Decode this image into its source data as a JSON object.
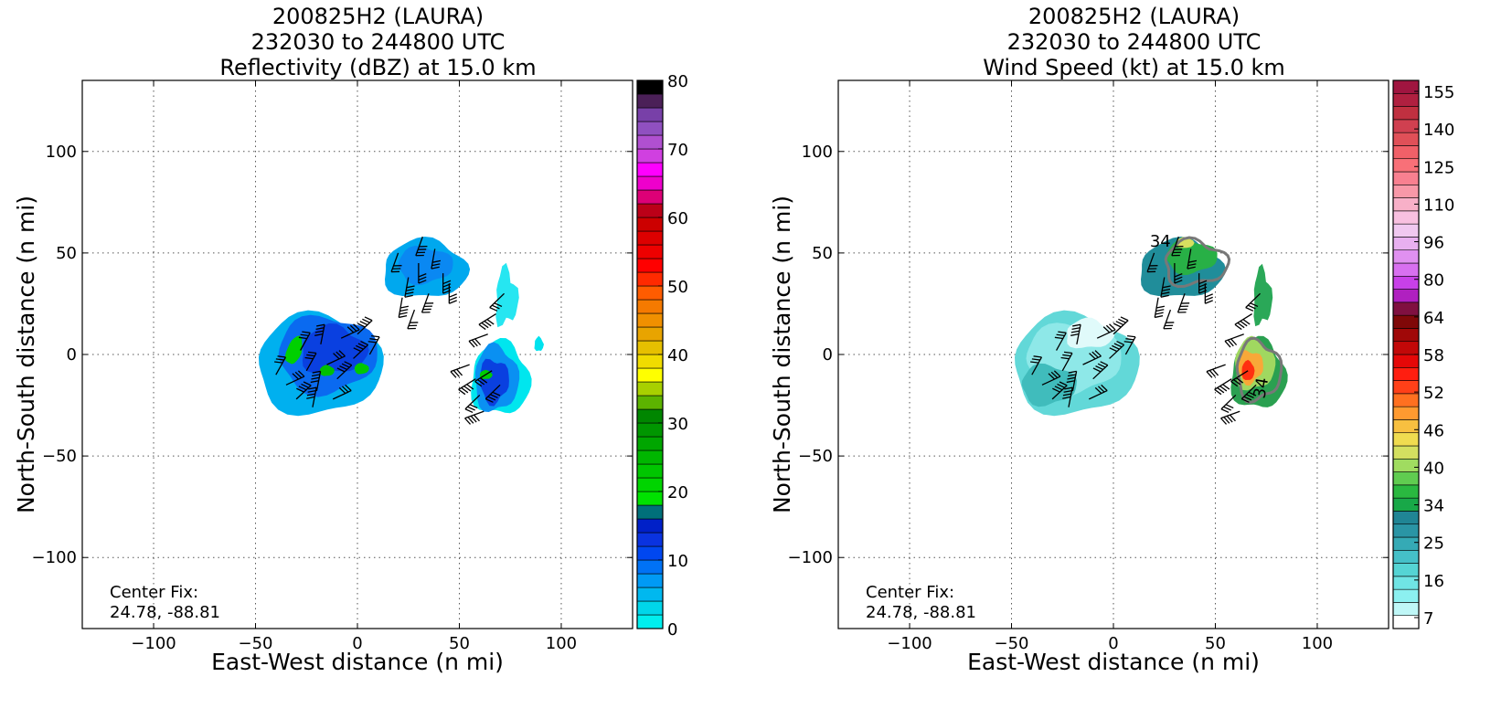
{
  "chart_data": [
    {
      "type": "heatmap",
      "title_lines": [
        "200825H2 (LAURA)",
        "232030 to 244800 UTC",
        "Reflectivity (dBZ) at 15.0 km"
      ],
      "xlabel": "East-West distance (n mi)",
      "ylabel": "North-South distance (n mi)",
      "xlim": [
        -135,
        135
      ],
      "ylim": [
        -135,
        135
      ],
      "xticks": [
        "−100",
        "−50",
        "0",
        "50",
        "100"
      ],
      "yticks": [
        "100",
        "50",
        "0",
        "−50",
        "−100"
      ],
      "grid": true,
      "annotation": [
        "Center Fix:",
        "24.78, -88.81"
      ],
      "colorbar": {
        "vmin": 0,
        "vmax": 80,
        "tick_values": [
          0,
          10,
          20,
          30,
          40,
          50,
          60,
          70,
          80
        ],
        "tick_labels": [
          "0",
          "10",
          "20",
          "30",
          "40",
          "50",
          "60",
          "70",
          "80"
        ],
        "colors": [
          "#00eeee",
          "#00d6ea",
          "#00b8ef",
          "#009af5",
          "#0072f5",
          "#0047f0",
          "#0a33e0",
          "#0020c8",
          "#00707a",
          "#00e200",
          "#00d400",
          "#00c600",
          "#00b600",
          "#00a600",
          "#009600",
          "#008600",
          "#5cb300",
          "#a8d000",
          "#ffff00",
          "#f0dc00",
          "#e6c000",
          "#e8a400",
          "#f09000",
          "#f57a00",
          "#ff5c00",
          "#ff2a00",
          "#ff0000",
          "#ee0000",
          "#dd0000",
          "#cc0000",
          "#bb0018",
          "#dd0077",
          "#ee00cc",
          "#ff00ff",
          "#d040e0",
          "#b050d0",
          "#9050c0",
          "#7840a8",
          "#4b2058",
          "#000000"
        ]
      },
      "wind_barbs": true
    },
    {
      "type": "heatmap",
      "title_lines": [
        "200825H2 (LAURA)",
        "232030 to 244800 UTC",
        "Wind Speed (kt) at 15.0 km"
      ],
      "xlabel": "East-West distance (n mi)",
      "ylabel": "North-South distance (n mi)",
      "xlim": [
        -135,
        135
      ],
      "ylim": [
        -135,
        135
      ],
      "xticks": [
        "−100",
        "−50",
        "0",
        "50",
        "100"
      ],
      "yticks": [
        "100",
        "50",
        "0",
        "−50",
        "−100"
      ],
      "grid": true,
      "annotation": [
        "Center Fix:",
        "24.78, -88.81"
      ],
      "contour_labels": [
        "34",
        "34"
      ],
      "colorbar": {
        "tick_labels": [
          "7",
          "16",
          "25",
          "34",
          "40",
          "46",
          "52",
          "58",
          "64",
          "80",
          "96",
          "110",
          "125",
          "140",
          "155"
        ],
        "colors": [
          "#ffffff",
          "#bff7f7",
          "#8cf0f0",
          "#70e4e4",
          "#55d4d4",
          "#45c0c8",
          "#35aab5",
          "#2a95a5",
          "#208595",
          "#18a848",
          "#2ab840",
          "#60cc50",
          "#a0dc60",
          "#d4e060",
          "#f0dc50",
          "#f8c040",
          "#ff9a30",
          "#ff7020",
          "#ff4018",
          "#ff1e10",
          "#e50808",
          "#c20808",
          "#a00808",
          "#800808",
          "#801040",
          "#b020c0",
          "#c840e8",
          "#d870f0",
          "#e090f0",
          "#e8b0f0",
          "#f0c8f0",
          "#f8c0e0",
          "#f8b0c8",
          "#f898a8",
          "#f88090",
          "#f87078",
          "#f06068",
          "#e05058",
          "#d04050",
          "#c03040",
          "#b02040",
          "#a01540"
        ]
      },
      "wind_barbs": true
    }
  ]
}
